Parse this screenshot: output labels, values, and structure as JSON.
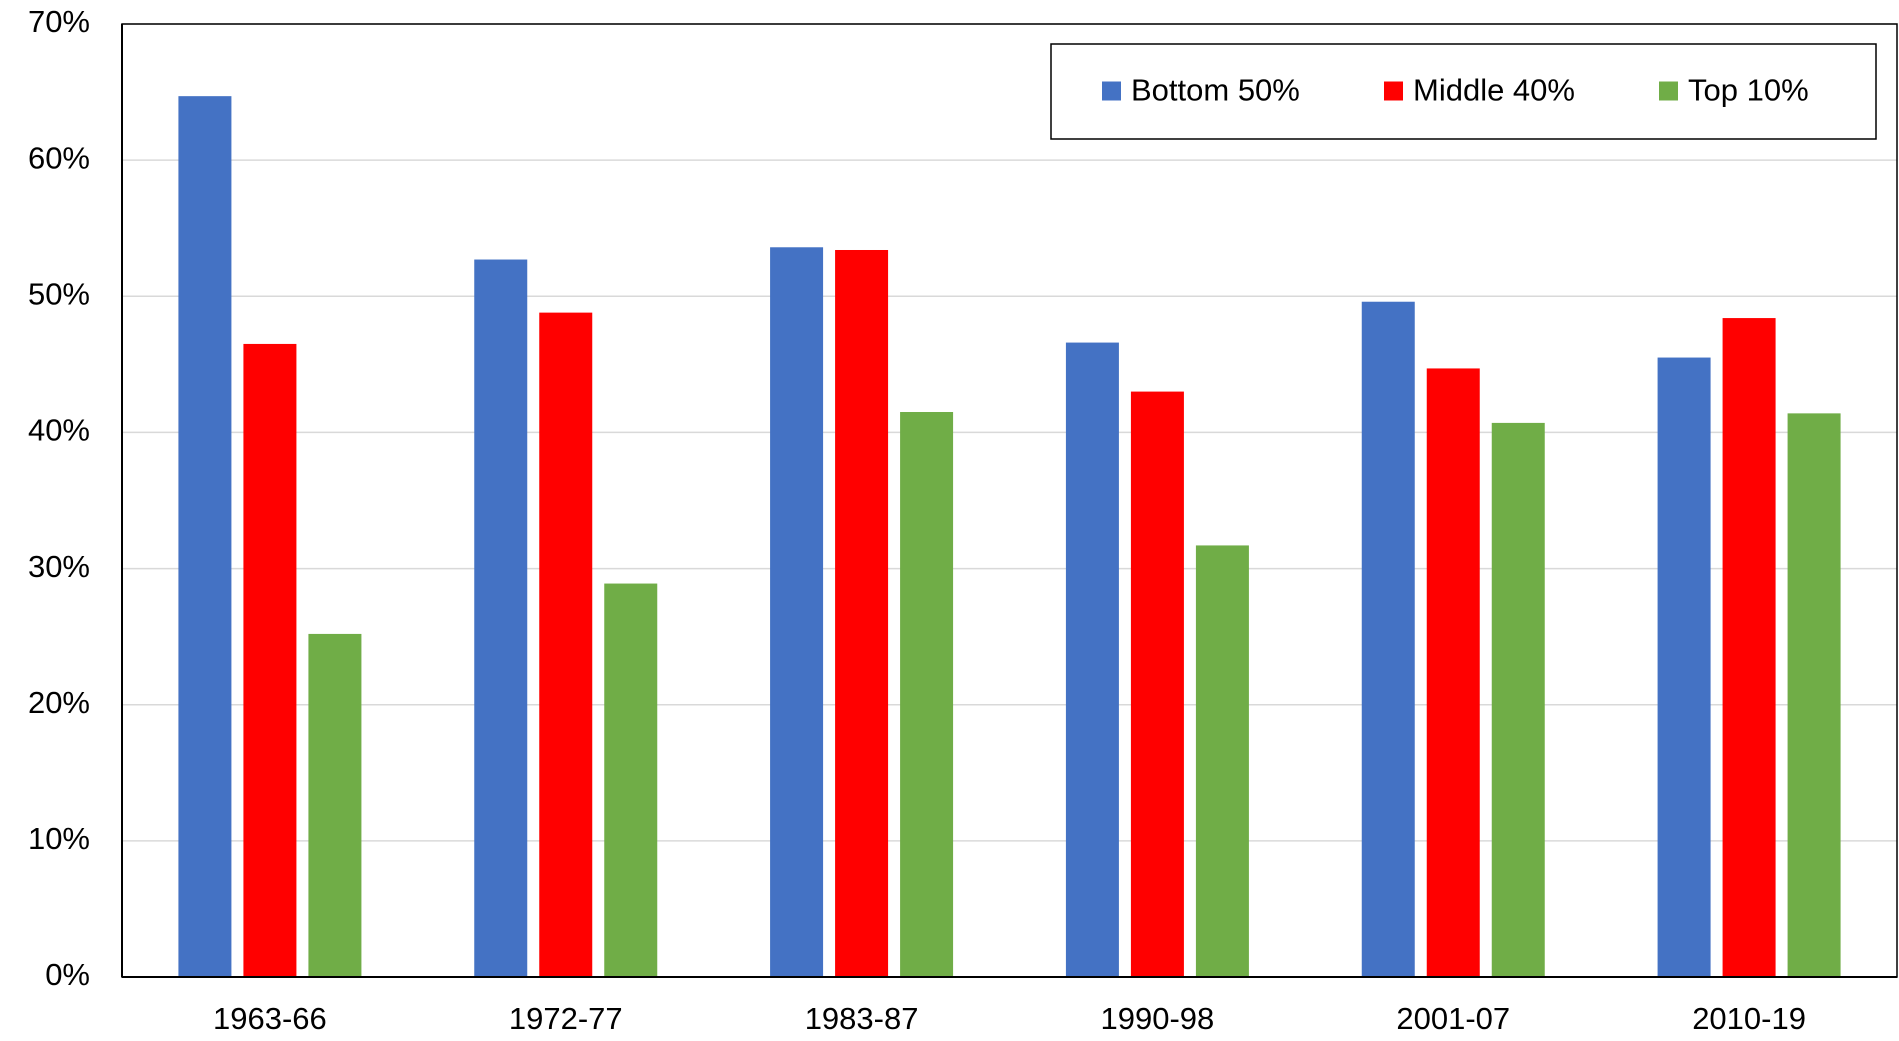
{
  "chart_data": {
    "type": "bar",
    "categories": [
      "1963-66",
      "1972-77",
      "1983-87",
      "1990-98",
      "2001-07",
      "2010-19"
    ],
    "series": [
      {
        "name": "Bottom 50%",
        "color": "#4472c4",
        "values": [
          64.7,
          52.7,
          53.6,
          46.6,
          49.6,
          45.5
        ]
      },
      {
        "name": "Middle 40%",
        "color": "#ff0000",
        "values": [
          46.5,
          48.8,
          53.4,
          43.0,
          44.7,
          48.4
        ]
      },
      {
        "name": "Top 10%",
        "color": "#70ad47",
        "values": [
          25.2,
          28.9,
          41.5,
          31.7,
          40.7,
          41.4
        ]
      }
    ],
    "ylim": [
      0,
      70
    ],
    "yticks": [
      {
        "value": 0,
        "label": "0%"
      },
      {
        "value": 10,
        "label": "10%"
      },
      {
        "value": 20,
        "label": "20%"
      },
      {
        "value": 30,
        "label": "30%"
      },
      {
        "value": 40,
        "label": "40%"
      },
      {
        "value": 50,
        "label": "50%"
      },
      {
        "value": 60,
        "label": "60%"
      },
      {
        "value": 70,
        "label": "70%"
      }
    ],
    "grid": true,
    "legend": "upper right"
  }
}
